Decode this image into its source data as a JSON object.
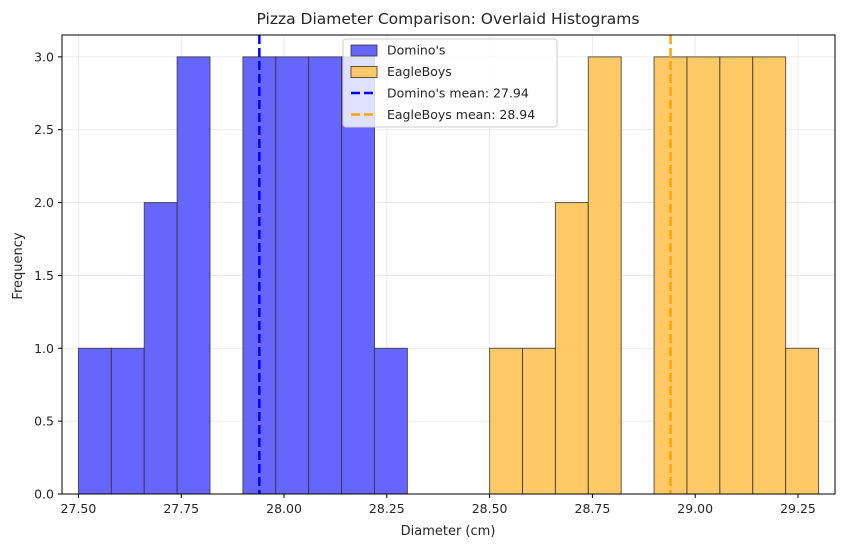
{
  "chart_data": {
    "type": "histogram",
    "title": "Pizza Diameter Comparison: Overlaid Histograms",
    "xlabel": "Diameter (cm)",
    "ylabel": "Frequency",
    "xlim": [
      27.46,
      29.34
    ],
    "ylim": [
      0,
      3.15
    ],
    "xticks": [
      27.5,
      27.75,
      28.0,
      28.25,
      28.5,
      28.75,
      29.0,
      29.25
    ],
    "xtick_labels": [
      "27.50",
      "27.75",
      "28.00",
      "28.25",
      "28.50",
      "28.75",
      "29.00",
      "29.25"
    ],
    "yticks": [
      0.0,
      0.5,
      1.0,
      1.5,
      2.0,
      2.5,
      3.0
    ],
    "ytick_labels": [
      "0.0",
      "0.5",
      "1.0",
      "1.5",
      "2.0",
      "2.5",
      "3.0"
    ],
    "grid": true,
    "legend_position": "top-center",
    "series": [
      {
        "name": "Domino's",
        "color": "#6666ff",
        "bins": [
          {
            "x0": 27.5,
            "x1": 27.58,
            "count": 1
          },
          {
            "x0": 27.58,
            "x1": 27.66,
            "count": 1
          },
          {
            "x0": 27.66,
            "x1": 27.74,
            "count": 2
          },
          {
            "x0": 27.74,
            "x1": 27.82,
            "count": 3
          },
          {
            "x0": 27.82,
            "x1": 27.9,
            "count": 0
          },
          {
            "x0": 27.9,
            "x1": 27.98,
            "count": 3
          },
          {
            "x0": 27.98,
            "x1": 28.06,
            "count": 3
          },
          {
            "x0": 28.06,
            "x1": 28.14,
            "count": 3
          },
          {
            "x0": 28.14,
            "x1": 28.22,
            "count": 3
          },
          {
            "x0": 28.22,
            "x1": 28.3,
            "count": 1
          }
        ]
      },
      {
        "name": "EagleBoys",
        "color": "#ffc966",
        "bins": [
          {
            "x0": 28.5,
            "x1": 28.58,
            "count": 1
          },
          {
            "x0": 28.58,
            "x1": 28.66,
            "count": 1
          },
          {
            "x0": 28.66,
            "x1": 28.74,
            "count": 2
          },
          {
            "x0": 28.74,
            "x1": 28.82,
            "count": 3
          },
          {
            "x0": 28.82,
            "x1": 28.9,
            "count": 0
          },
          {
            "x0": 28.9,
            "x1": 28.98,
            "count": 3
          },
          {
            "x0": 28.98,
            "x1": 29.06,
            "count": 3
          },
          {
            "x0": 29.06,
            "x1": 29.14,
            "count": 3
          },
          {
            "x0": 29.14,
            "x1": 29.22,
            "count": 3
          },
          {
            "x0": 29.22,
            "x1": 29.3,
            "count": 1
          }
        ]
      }
    ],
    "mean_lines": [
      {
        "name": "Domino's mean: 27.94",
        "value": 27.94,
        "color": "#0000ff"
      },
      {
        "name": "EagleBoys mean: 28.94",
        "value": 28.94,
        "color": "#ffa500"
      }
    ]
  }
}
